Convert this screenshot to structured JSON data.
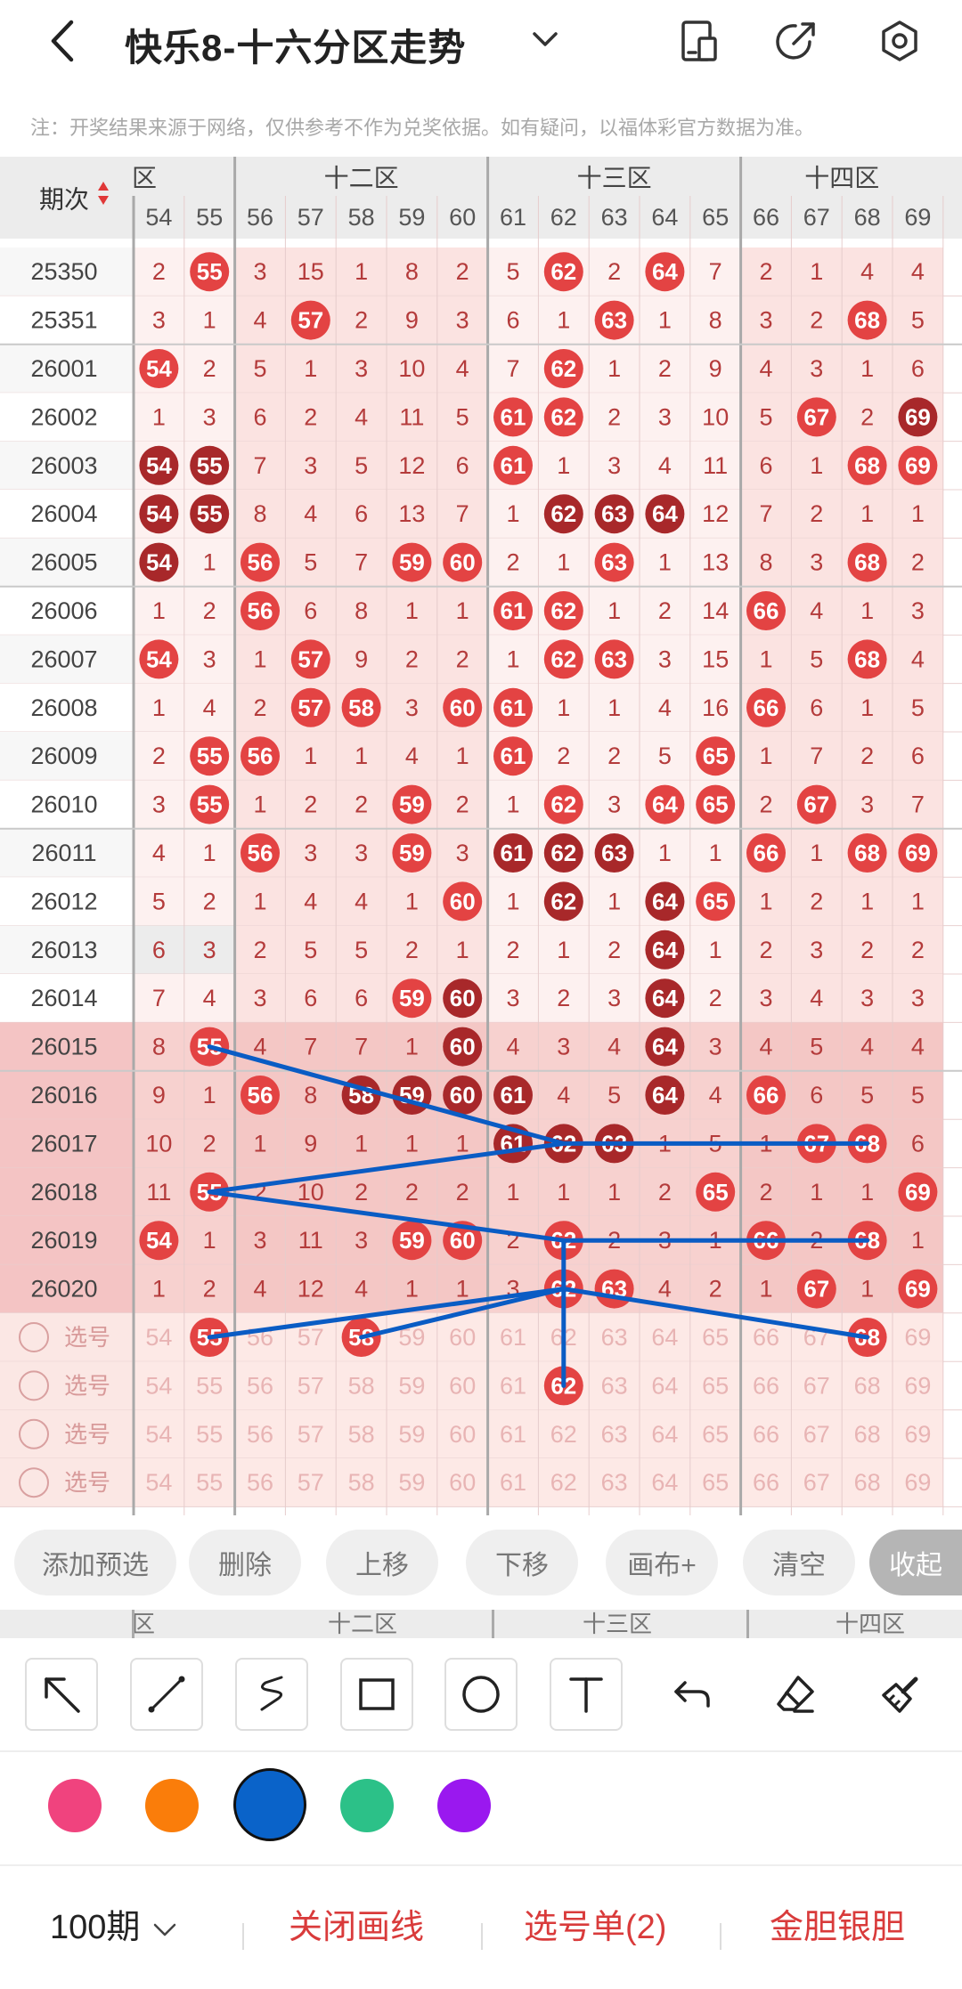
{
  "header": {
    "title": "快乐8-十六分区走势",
    "icons": [
      "back-arrow-icon",
      "chevron-down-icon",
      "phone-layout-icon",
      "share-icon",
      "settings-gear-icon"
    ]
  },
  "notice": "注：开奖结果来源于网络，仅供参考不作为兑奖依据。如有疑问，以福体彩官方数据为准。",
  "table": {
    "period_header": "期次",
    "zones": [
      {
        "label": "区",
        "from": 54,
        "to": 55
      },
      {
        "label": "十二区",
        "from": 56,
        "to": 60
      },
      {
        "label": "十三区",
        "from": 61,
        "to": 65
      },
      {
        "label": "十四区",
        "from": 66,
        "to": 69
      }
    ],
    "columns": [
      "54",
      "55",
      "56",
      "57",
      "58",
      "59",
      "60",
      "61",
      "62",
      "63",
      "64",
      "65",
      "66",
      "67",
      "68",
      "69"
    ],
    "rows": [
      {
        "period": "25350",
        "cells": [
          2,
          55,
          3,
          15,
          1,
          8,
          2,
          5,
          62,
          2,
          64,
          7,
          2,
          1,
          4,
          4
        ]
      },
      {
        "period": "25351",
        "cells": [
          3,
          1,
          4,
          57,
          2,
          9,
          3,
          6,
          1,
          63,
          1,
          8,
          3,
          2,
          68,
          5
        ]
      },
      {
        "period": "26001",
        "cells": [
          54,
          2,
          5,
          1,
          3,
          10,
          4,
          7,
          62,
          1,
          2,
          9,
          4,
          3,
          1,
          6
        ]
      },
      {
        "period": "26002",
        "cells": [
          1,
          3,
          6,
          2,
          4,
          11,
          5,
          61,
          62,
          2,
          3,
          10,
          5,
          67,
          2,
          69
        ]
      },
      {
        "period": "26003",
        "cells": [
          54,
          55,
          7,
          3,
          5,
          12,
          6,
          61,
          1,
          3,
          4,
          11,
          6,
          1,
          68,
          69
        ]
      },
      {
        "period": "26004",
        "cells": [
          54,
          55,
          8,
          4,
          6,
          13,
          7,
          1,
          62,
          63,
          64,
          12,
          7,
          2,
          1,
          1
        ]
      },
      {
        "period": "26005",
        "cells": [
          54,
          1,
          56,
          5,
          7,
          59,
          60,
          2,
          1,
          63,
          1,
          13,
          8,
          3,
          68,
          2
        ]
      },
      {
        "period": "26006",
        "cells": [
          1,
          2,
          56,
          6,
          8,
          1,
          1,
          61,
          62,
          1,
          2,
          14,
          66,
          4,
          1,
          3
        ]
      },
      {
        "period": "26007",
        "cells": [
          54,
          3,
          1,
          57,
          9,
          2,
          2,
          1,
          62,
          63,
          3,
          15,
          1,
          5,
          68,
          4
        ]
      },
      {
        "period": "26008",
        "cells": [
          1,
          4,
          2,
          57,
          58,
          3,
          60,
          61,
          1,
          1,
          4,
          16,
          66,
          6,
          1,
          5
        ]
      },
      {
        "period": "26009",
        "cells": [
          2,
          55,
          56,
          1,
          1,
          4,
          1,
          61,
          2,
          2,
          5,
          65,
          1,
          7,
          2,
          6
        ]
      },
      {
        "period": "26010",
        "cells": [
          3,
          55,
          1,
          2,
          2,
          59,
          2,
          1,
          62,
          3,
          64,
          65,
          2,
          67,
          3,
          7
        ]
      },
      {
        "period": "26011",
        "cells": [
          4,
          1,
          56,
          3,
          3,
          59,
          3,
          61,
          62,
          63,
          1,
          1,
          66,
          1,
          68,
          69
        ]
      },
      {
        "period": "26012",
        "cells": [
          5,
          2,
          1,
          4,
          4,
          1,
          60,
          1,
          62,
          1,
          64,
          65,
          1,
          2,
          1,
          1
        ]
      },
      {
        "period": "26013",
        "cells": [
          6,
          3,
          2,
          5,
          5,
          2,
          1,
          2,
          1,
          2,
          64,
          1,
          2,
          3,
          2,
          2
        ]
      },
      {
        "period": "26014",
        "cells": [
          7,
          4,
          3,
          6,
          6,
          59,
          60,
          3,
          2,
          3,
          64,
          2,
          3,
          4,
          3,
          3
        ]
      },
      {
        "period": "26015",
        "cells": [
          8,
          55,
          4,
          7,
          7,
          1,
          60,
          4,
          3,
          4,
          64,
          3,
          4,
          5,
          4,
          4
        ]
      },
      {
        "period": "26016",
        "cells": [
          9,
          1,
          56,
          8,
          58,
          59,
          60,
          61,
          4,
          5,
          64,
          4,
          66,
          6,
          5,
          5
        ]
      },
      {
        "period": "26017",
        "cells": [
          10,
          2,
          1,
          9,
          1,
          1,
          1,
          61,
          62,
          63,
          1,
          5,
          1,
          67,
          68,
          6
        ]
      },
      {
        "period": "26018",
        "cells": [
          11,
          55,
          2,
          10,
          2,
          2,
          2,
          1,
          1,
          1,
          2,
          65,
          2,
          1,
          1,
          69
        ]
      },
      {
        "period": "26019",
        "cells": [
          54,
          1,
          3,
          11,
          3,
          59,
          60,
          2,
          62,
          2,
          3,
          1,
          66,
          2,
          68,
          1
        ]
      },
      {
        "period": "26020",
        "cells": [
          1,
          2,
          4,
          12,
          4,
          1,
          1,
          3,
          62,
          63,
          4,
          2,
          1,
          67,
          1,
          69
        ]
      }
    ],
    "pick_label": "选号",
    "pick_rows": [
      {
        "selected": [
          "55",
          "58",
          "68"
        ]
      },
      {
        "selected": [
          "62"
        ]
      },
      {
        "selected": []
      },
      {
        "selected": []
      }
    ]
  },
  "actions": [
    "添加预选",
    "删除",
    "上移",
    "下移",
    "画布+",
    "清空",
    "收起"
  ],
  "sub_header": [
    "区",
    "十二区",
    "十三区",
    "十四区"
  ],
  "tools": [
    "select-arrow-icon",
    "line-tool-icon",
    "curve-tool-icon",
    "rectangle-tool-icon",
    "circle-tool-icon",
    "text-tool-icon",
    "undo-icon",
    "eraser-icon",
    "clear-brush-icon"
  ],
  "colors": [
    "#f0437e",
    "#fa7d0a",
    "#0a63c9",
    "#2cc188",
    "#9a18ef"
  ],
  "bottom": {
    "period_select": "100期",
    "close_drawing": "关闭画线",
    "pick_list": "选号单(2)",
    "gold_silver": "金胆银胆"
  }
}
